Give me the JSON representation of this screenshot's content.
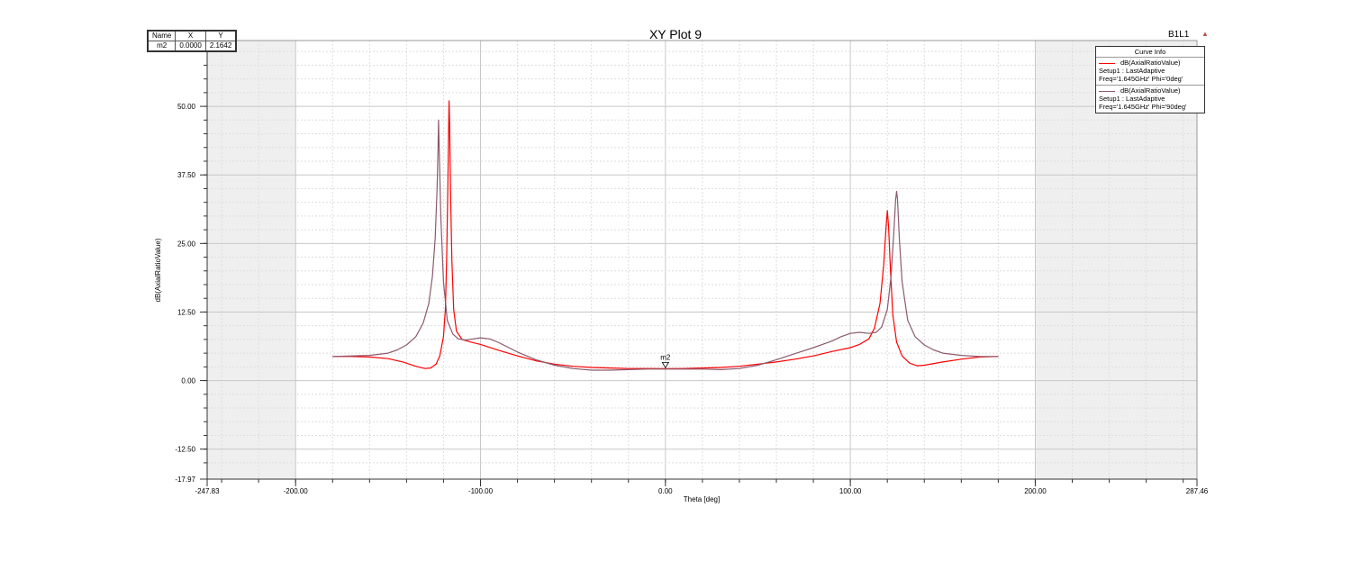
{
  "title": "XY Plot 9",
  "plot_id": "B1L1",
  "marker_table": {
    "headers": [
      "Name",
      "X",
      "Y"
    ],
    "row": [
      "m2",
      "0.0000",
      "2.1642"
    ]
  },
  "legend": {
    "title": "Curve Info",
    "entries": [
      {
        "line1": "dB(AxialRatioValue)",
        "line2": "Setup1 : LastAdaptive",
        "line3": "Freq='1.645GHz' Phi='0deg'",
        "color": "#ff0000"
      },
      {
        "line1": "dB(AxialRatioValue)",
        "line2": "Setup1 : LastAdaptive",
        "line3": "Freq='1.645GHz' Phi='90deg'",
        "color": "#8b5a6e"
      }
    ]
  },
  "chart_data": {
    "type": "line",
    "title": "XY Plot 9",
    "xlabel": "Theta [deg]",
    "ylabel": "dB(AxialRatioValue)",
    "xlim": [
      -247.83,
      287.46
    ],
    "ylim": [
      -17.97,
      62
    ],
    "x_ticks": [
      {
        "v": -247.83,
        "label": "-247.83"
      },
      {
        "v": -200,
        "label": "-200.00"
      },
      {
        "v": -100,
        "label": "-100.00"
      },
      {
        "v": 0,
        "label": "0.00"
      },
      {
        "v": 100,
        "label": "100.00"
      },
      {
        "v": 200,
        "label": "200.00"
      },
      {
        "v": 287.46,
        "label": "287.46"
      }
    ],
    "y_ticks": [
      {
        "v": -17.97,
        "label": "-17.97"
      },
      {
        "v": -12.5,
        "label": "-12.50"
      },
      {
        "v": 0,
        "label": "0.00"
      },
      {
        "v": 12.5,
        "label": "12.50"
      },
      {
        "v": 25,
        "label": "25.00"
      },
      {
        "v": 37.5,
        "label": "37.50"
      },
      {
        "v": 50,
        "label": "50.00"
      }
    ],
    "data_region_x": [
      -200,
      200
    ],
    "grid": true,
    "legend_position": "top-right",
    "marker": {
      "name": "m2",
      "x": 0,
      "y": 2.1642
    },
    "series": [
      {
        "name": "dB(AxialRatioValue) Setup1 : LastAdaptive Freq='1.645GHz' Phi='0deg'",
        "color": "#ff0000",
        "points": [
          [
            -180,
            4.4
          ],
          [
            -170,
            4.4
          ],
          [
            -160,
            4.3
          ],
          [
            -150,
            4.0
          ],
          [
            -142,
            3.4
          ],
          [
            -135,
            2.6
          ],
          [
            -130,
            2.2
          ],
          [
            -127,
            2.3
          ],
          [
            -124,
            3.0
          ],
          [
            -122,
            4.5
          ],
          [
            -120,
            8.0
          ],
          [
            -119,
            13
          ],
          [
            -118.3,
            22
          ],
          [
            -117.7,
            35
          ],
          [
            -117.2,
            47
          ],
          [
            -117,
            51
          ],
          [
            -116.7,
            47
          ],
          [
            -116.2,
            35
          ],
          [
            -115.5,
            22
          ],
          [
            -114.5,
            13
          ],
          [
            -113,
            9
          ],
          [
            -110,
            7.5
          ],
          [
            -105,
            7.0
          ],
          [
            -100,
            6.6
          ],
          [
            -90,
            5.5
          ],
          [
            -80,
            4.5
          ],
          [
            -70,
            3.6
          ],
          [
            -60,
            3.0
          ],
          [
            -50,
            2.6
          ],
          [
            -40,
            2.4
          ],
          [
            -30,
            2.3
          ],
          [
            -20,
            2.2
          ],
          [
            -10,
            2.2
          ],
          [
            0,
            2.16
          ],
          [
            10,
            2.2
          ],
          [
            20,
            2.3
          ],
          [
            30,
            2.4
          ],
          [
            40,
            2.6
          ],
          [
            50,
            3.0
          ],
          [
            60,
            3.4
          ],
          [
            70,
            3.9
          ],
          [
            80,
            4.5
          ],
          [
            90,
            5.3
          ],
          [
            100,
            6.0
          ],
          [
            105,
            6.6
          ],
          [
            110,
            7.6
          ],
          [
            113,
            9.5
          ],
          [
            116,
            14
          ],
          [
            118,
            21
          ],
          [
            119.3,
            28
          ],
          [
            120,
            31
          ],
          [
            120.7,
            28
          ],
          [
            121.7,
            20
          ],
          [
            123,
            12
          ],
          [
            125,
            7
          ],
          [
            128,
            4.5
          ],
          [
            132,
            3.2
          ],
          [
            136,
            2.7
          ],
          [
            140,
            2.8
          ],
          [
            150,
            3.4
          ],
          [
            160,
            3.9
          ],
          [
            170,
            4.3
          ],
          [
            180,
            4.4
          ]
        ]
      },
      {
        "name": "dB(AxialRatioValue) Setup1 : LastAdaptive Freq='1.645GHz' Phi='90deg'",
        "color": "#8b5a6e",
        "points": [
          [
            -180,
            4.4
          ],
          [
            -170,
            4.5
          ],
          [
            -160,
            4.6
          ],
          [
            -150,
            5.0
          ],
          [
            -145,
            5.6
          ],
          [
            -140,
            6.5
          ],
          [
            -135,
            8.0
          ],
          [
            -131,
            10.5
          ],
          [
            -128,
            14
          ],
          [
            -126,
            19
          ],
          [
            -124.5,
            26
          ],
          [
            -123.5,
            35
          ],
          [
            -123,
            42
          ],
          [
            -122.7,
            47.5
          ],
          [
            -122.3,
            42
          ],
          [
            -121.5,
            30
          ],
          [
            -120,
            18
          ],
          [
            -118,
            11
          ],
          [
            -115,
            8.5
          ],
          [
            -112,
            7.6
          ],
          [
            -108,
            7.4
          ],
          [
            -104,
            7.6
          ],
          [
            -100,
            7.8
          ],
          [
            -95,
            7.6
          ],
          [
            -90,
            6.9
          ],
          [
            -80,
            5.2
          ],
          [
            -70,
            3.8
          ],
          [
            -60,
            2.8
          ],
          [
            -50,
            2.2
          ],
          [
            -40,
            1.9
          ],
          [
            -30,
            1.9
          ],
          [
            -20,
            2.0
          ],
          [
            -10,
            2.1
          ],
          [
            0,
            2.1
          ],
          [
            10,
            2.1
          ],
          [
            20,
            2.1
          ],
          [
            30,
            2.0
          ],
          [
            40,
            2.2
          ],
          [
            50,
            2.8
          ],
          [
            60,
            3.8
          ],
          [
            70,
            4.9
          ],
          [
            80,
            6.0
          ],
          [
            90,
            7.2
          ],
          [
            95,
            8.0
          ],
          [
            100,
            8.6
          ],
          [
            105,
            8.8
          ],
          [
            110,
            8.6
          ],
          [
            114,
            8.8
          ],
          [
            117,
            9.8
          ],
          [
            120,
            13
          ],
          [
            122,
            19
          ],
          [
            123.5,
            27
          ],
          [
            124.5,
            33
          ],
          [
            125,
            34.5
          ],
          [
            125.5,
            33
          ],
          [
            126.5,
            26
          ],
          [
            128,
            18
          ],
          [
            131,
            11
          ],
          [
            135,
            8
          ],
          [
            140,
            6.5
          ],
          [
            145,
            5.6
          ],
          [
            150,
            5.0
          ],
          [
            160,
            4.6
          ],
          [
            170,
            4.4
          ],
          [
            180,
            4.4
          ]
        ]
      }
    ]
  }
}
